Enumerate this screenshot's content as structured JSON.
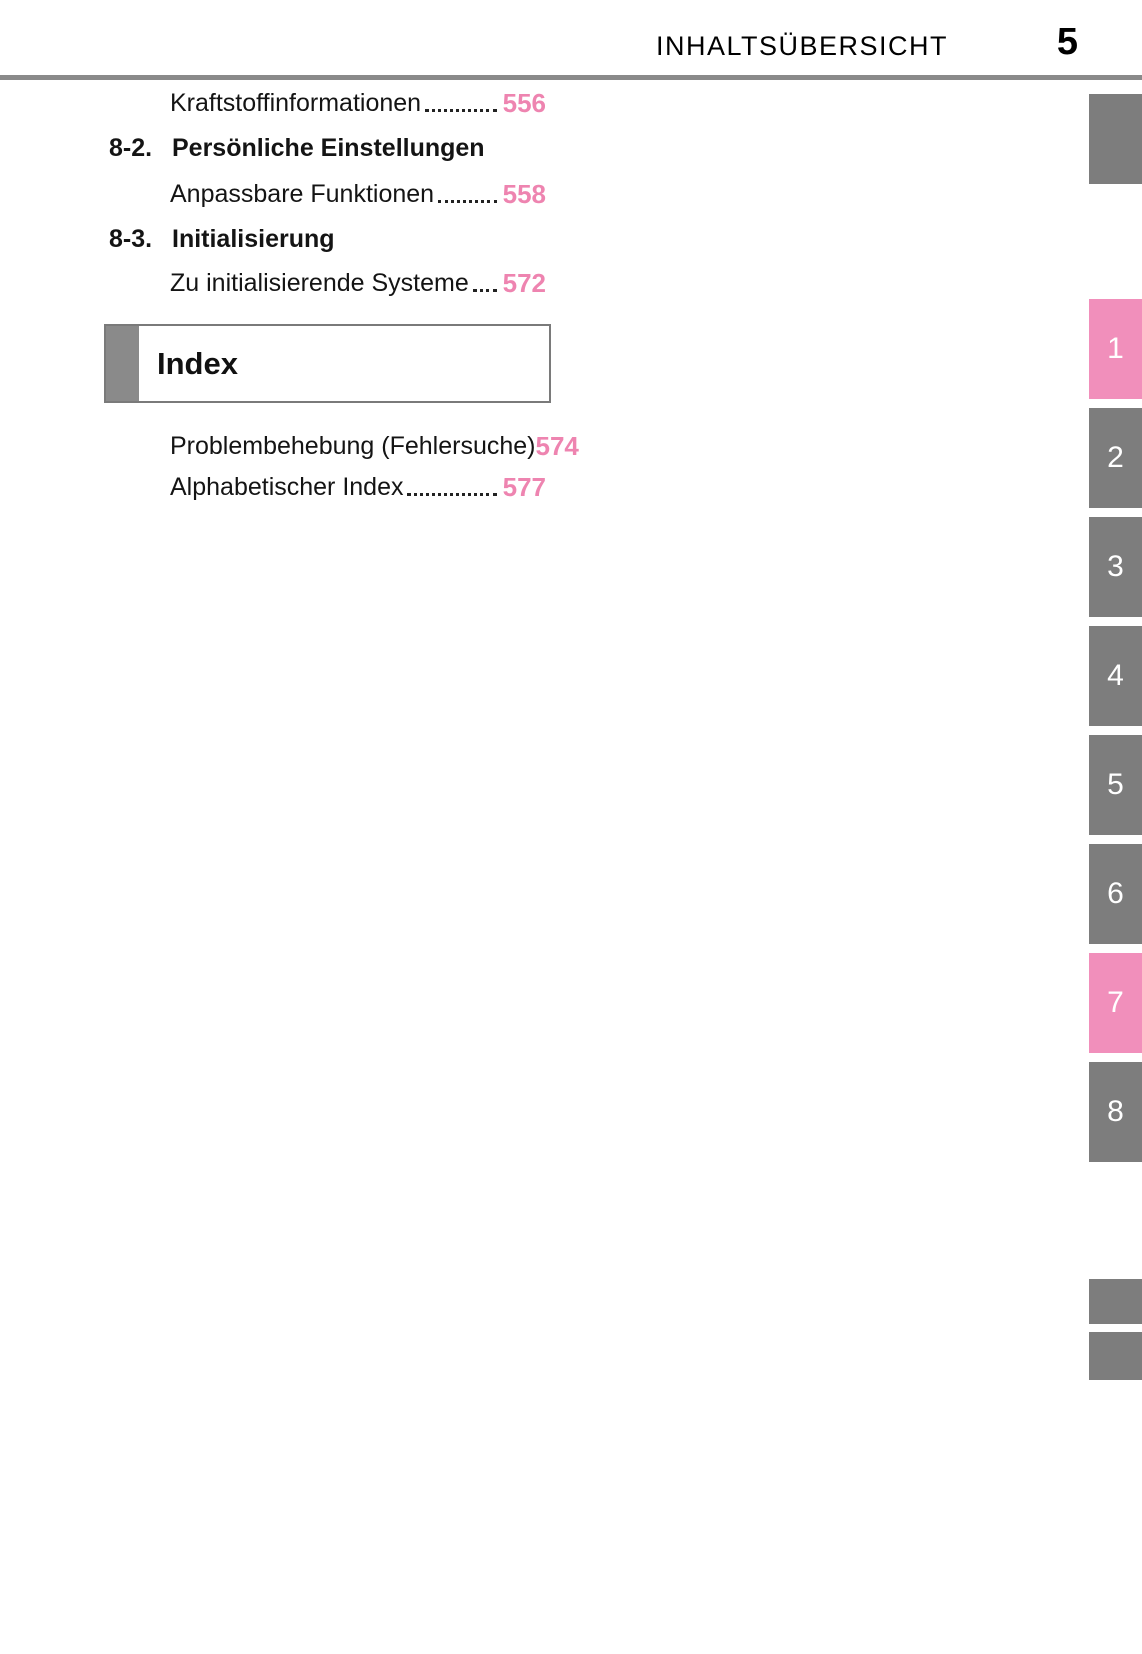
{
  "header": {
    "title": "INHALTSÜBERSICHT",
    "page_number": "5"
  },
  "toc": {
    "entries": [
      {
        "kind": "sub",
        "label": "Kraftstoffinformationen",
        "page": "556",
        "leader": true
      },
      {
        "kind": "section",
        "number": "8-2.",
        "label": "Persönliche Einstellungen"
      },
      {
        "kind": "sub",
        "label": "Anpassbare Funktionen",
        "page": "558",
        "leader": true
      },
      {
        "kind": "section",
        "number": "8-3.",
        "label": "Initialisierung"
      },
      {
        "kind": "sub",
        "label": "Zu initialisierende Systeme",
        "page": "572",
        "leader": true
      }
    ],
    "index_section": {
      "title": "Index",
      "entries": [
        {
          "label": "Problembehebung (Fehlersuche)",
          "page": "574",
          "leader": false
        },
        {
          "label": "Alphabetischer Index",
          "page": "577",
          "leader": true
        }
      ]
    }
  },
  "side_tabs": {
    "numbered": [
      {
        "label": "1",
        "highlighted": true
      },
      {
        "label": "2",
        "highlighted": false
      },
      {
        "label": "3",
        "highlighted": false
      },
      {
        "label": "4",
        "highlighted": false
      },
      {
        "label": "5",
        "highlighted": false
      },
      {
        "label": "6",
        "highlighted": false
      },
      {
        "label": "7",
        "highlighted": true
      },
      {
        "label": "8",
        "highlighted": false
      }
    ]
  },
  "colors": {
    "accent-pink": "#f18fbb",
    "number-pink": "#ee84b0",
    "tab-gray": "#7d7d7d",
    "rule-gray": "#8a8a8a"
  }
}
